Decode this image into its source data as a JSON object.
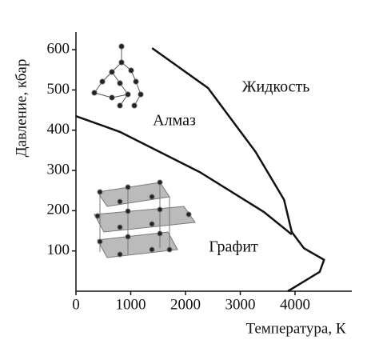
{
  "chart_data": {
    "type": "line",
    "x_label": "Температура, К",
    "y_label": "Давление, кбар",
    "xlim": [
      0,
      5000
    ],
    "ylim": [
      0,
      640
    ],
    "xticks": [
      0,
      1000,
      2000,
      3000,
      4000
    ],
    "yticks": [
      100,
      200,
      300,
      400,
      500,
      600
    ],
    "annotations": [
      "Жидкость",
      "Алмаз",
      "Графит"
    ],
    "series": [
      {
        "color": "#111111",
        "x": [
          0,
          800,
          2260,
          3430,
          3940
        ],
        "values": [
          435,
          396,
          296,
          197,
          141
        ]
      },
      {
        "color": "#111111",
        "x": [
          1390,
          2410,
          3280,
          3800,
          3940,
          4160,
          4530,
          4450,
          3870
        ],
        "values": [
          604,
          505,
          346,
          227,
          147,
          107,
          78,
          48,
          0
        ]
      }
    ]
  }
}
